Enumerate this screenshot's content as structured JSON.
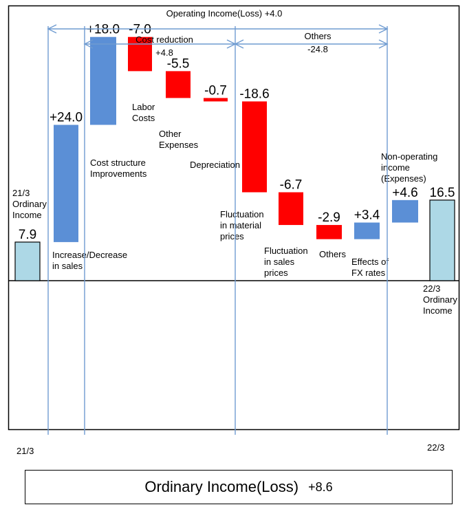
{
  "chart_data": {
    "type": "bar",
    "subtype": "waterfall",
    "colors": {
      "start_end": "#add8e6",
      "increase": "#5b8fd6",
      "decrease": "#ff0000",
      "bracket": "#6f9bd1"
    },
    "steps": [
      {
        "value_label": "7.9",
        "kind": "total",
        "start": 0,
        "end": 7.9,
        "category": [
          "21/3",
          "Ordinary",
          "Income"
        ]
      },
      {
        "value_label": "+24.0",
        "kind": "increase",
        "start": 7.9,
        "end": 31.9,
        "category": [
          "Increase/Decrease",
          "in sales"
        ]
      },
      {
        "value_label": "+18.0",
        "kind": "increase",
        "start": 31.9,
        "end": 49.9,
        "category": [
          "Cost structure",
          "Improvements"
        ]
      },
      {
        "value_label": "-7.0",
        "kind": "decrease",
        "start": 49.9,
        "end": 42.9,
        "category": [
          "Labor",
          "Costs"
        ]
      },
      {
        "value_label": "-5.5",
        "kind": "decrease",
        "start": 42.9,
        "end": 37.4,
        "category": [
          "Other",
          "Expenses"
        ]
      },
      {
        "value_label": "-0.7",
        "kind": "decrease",
        "start": 37.4,
        "end": 36.7,
        "category": [
          "Depreciation"
        ]
      },
      {
        "value_label": "-18.6",
        "kind": "decrease",
        "start": 36.7,
        "end": 18.1,
        "category": [
          "Fluctuation",
          "in material",
          "prices"
        ]
      },
      {
        "value_label": "-6.7",
        "kind": "decrease",
        "start": 18.1,
        "end": 11.4,
        "category": [
          "Fluctuation",
          "in sales",
          "prices"
        ]
      },
      {
        "value_label": "-2.9",
        "kind": "decrease",
        "start": 11.4,
        "end": 8.5,
        "category": [
          "Others"
        ]
      },
      {
        "value_label": "+3.4",
        "kind": "increase",
        "start": 8.5,
        "end": 11.9,
        "category": [
          "Effects of",
          "FX rates"
        ]
      },
      {
        "value_label": "+4.6",
        "kind": "increase",
        "start": 11.9,
        "end": 16.5,
        "category": [
          "Non-operating",
          "income",
          "(Expenses)"
        ]
      },
      {
        "value_label": "16.5",
        "kind": "total",
        "start": 0,
        "end": 16.5,
        "category": [
          "22/3",
          "Ordinary",
          "Income"
        ]
      }
    ],
    "brackets": [
      {
        "label": [
          "Operating Income(Loss) +4.0"
        ]
      },
      {
        "label": [
          "Cost reduction",
          "+4.8"
        ]
      },
      {
        "label": [
          "Others",
          "-24.8"
        ]
      }
    ],
    "x_edge_labels": [
      "21/3",
      "22/3"
    ],
    "grid": false,
    "legend": "none"
  },
  "footer": {
    "title": "Ordinary Income(Loss)",
    "value": "+8.6"
  }
}
